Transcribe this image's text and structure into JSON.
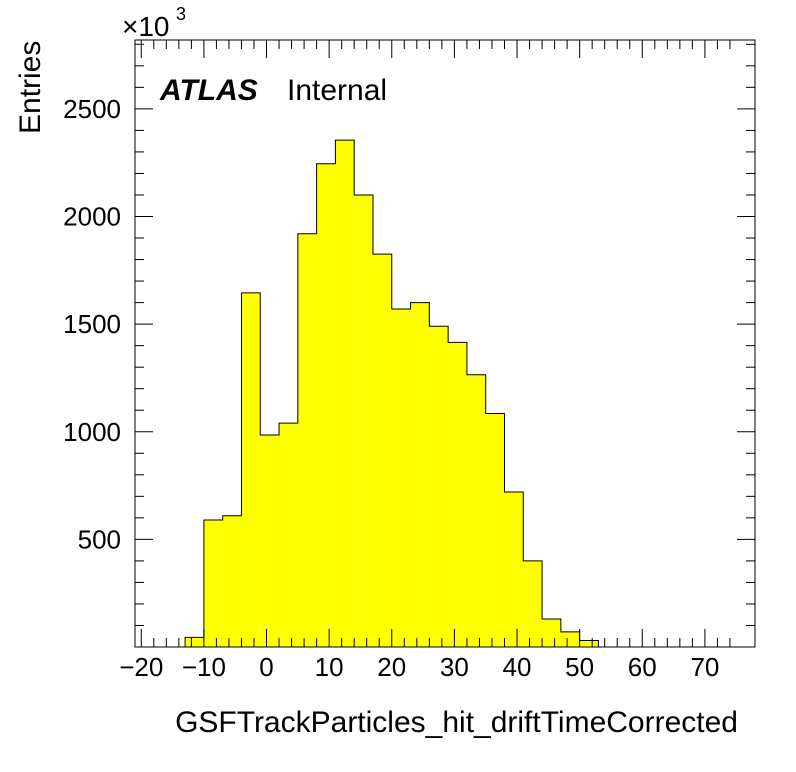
{
  "chart_data": {
    "type": "bar",
    "style": "histogram",
    "fill_color": "#ffff00",
    "edge_color": "#000000",
    "bin_edges": [
      -16,
      -13,
      -10,
      -7,
      -4,
      -1,
      2,
      5,
      8,
      11,
      14,
      17,
      20,
      23,
      26,
      29,
      32,
      35,
      38,
      41,
      44,
      47,
      50,
      53,
      56,
      59,
      62,
      65,
      68,
      71,
      74,
      77
    ],
    "values": [
      0,
      45,
      590,
      610,
      1645,
      985,
      1040,
      1920,
      2245,
      2355,
      2100,
      1825,
      1570,
      1600,
      1490,
      1415,
      1265,
      1085,
      720,
      400,
      130,
      70,
      30,
      0,
      0,
      0,
      0,
      0,
      0,
      0,
      0
    ],
    "xlim": [
      -21,
      78
    ],
    "ylim": [
      0,
      2820
    ],
    "x_ticks": [
      -20,
      -10,
      0,
      10,
      20,
      30,
      40,
      50,
      60,
      70
    ],
    "y_ticks": [
      500,
      1000,
      1500,
      2000,
      2500
    ],
    "xlabel": "GSFTrackParticles_hit_driftTimeCorrected",
    "ylabel": "Entries",
    "y_multiplier": "×10",
    "y_multiplier_exp": "3",
    "grid": false,
    "labels": {
      "experiment": "ATLAS",
      "status": "Internal"
    }
  }
}
